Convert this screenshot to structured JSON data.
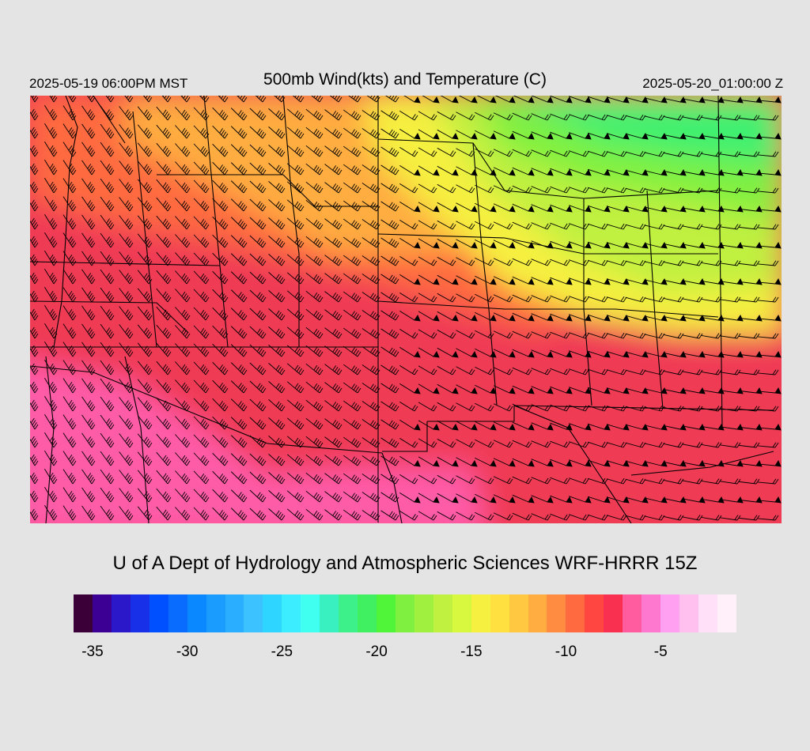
{
  "header": {
    "valid_local": "2025-05-19 06:00PM MST",
    "title": "500mb Wind(kts) and Temperature (C)",
    "valid_utc": "2025-05-20_01:00:00 Z"
  },
  "footer": {
    "credit": "U of A Dept of Hydrology and Atmospheric Sciences WRF-HRRR 15Z"
  },
  "colorbar": {
    "colors": [
      "#3b0038",
      "#3c0095",
      "#2b18c8",
      "#1730e8",
      "#0050ff",
      "#0a6cff",
      "#0a88ff",
      "#1a9cff",
      "#2aaeff",
      "#3cc3ff",
      "#2ed6ff",
      "#3cecff",
      "#40fff0",
      "#38f0c0",
      "#3ef08a",
      "#40f060",
      "#50f53a",
      "#80f040",
      "#a0f040",
      "#c0f040",
      "#d8f840",
      "#f6f040",
      "#ffe040",
      "#ffc840",
      "#ffac40",
      "#ff8c40",
      "#ff6a40",
      "#ff4640",
      "#fa3050",
      "#ff5ca0",
      "#ff78d0",
      "#ffa0f0",
      "#ffc0f0",
      "#ffe0f8",
      "#fff0fa"
    ],
    "labels": [
      "-35",
      "-30",
      "-25",
      "-20",
      "-15",
      "-10",
      "-5"
    ],
    "label_values": [
      -35,
      -30,
      -25,
      -20,
      -15,
      -10,
      -5
    ],
    "min": -36,
    "max": -1
  },
  "map": {
    "temperature_colors": {
      "coldest_north": "#30f070",
      "cold": "#a0f040",
      "mid": "#f6f040",
      "warm": "#ffac40",
      "warmer": "#ff6a40",
      "warmest": "#f03a55",
      "south_warm": "#ff5ca8"
    },
    "wind_barb_color": "#000000",
    "border_color": "#000000"
  }
}
